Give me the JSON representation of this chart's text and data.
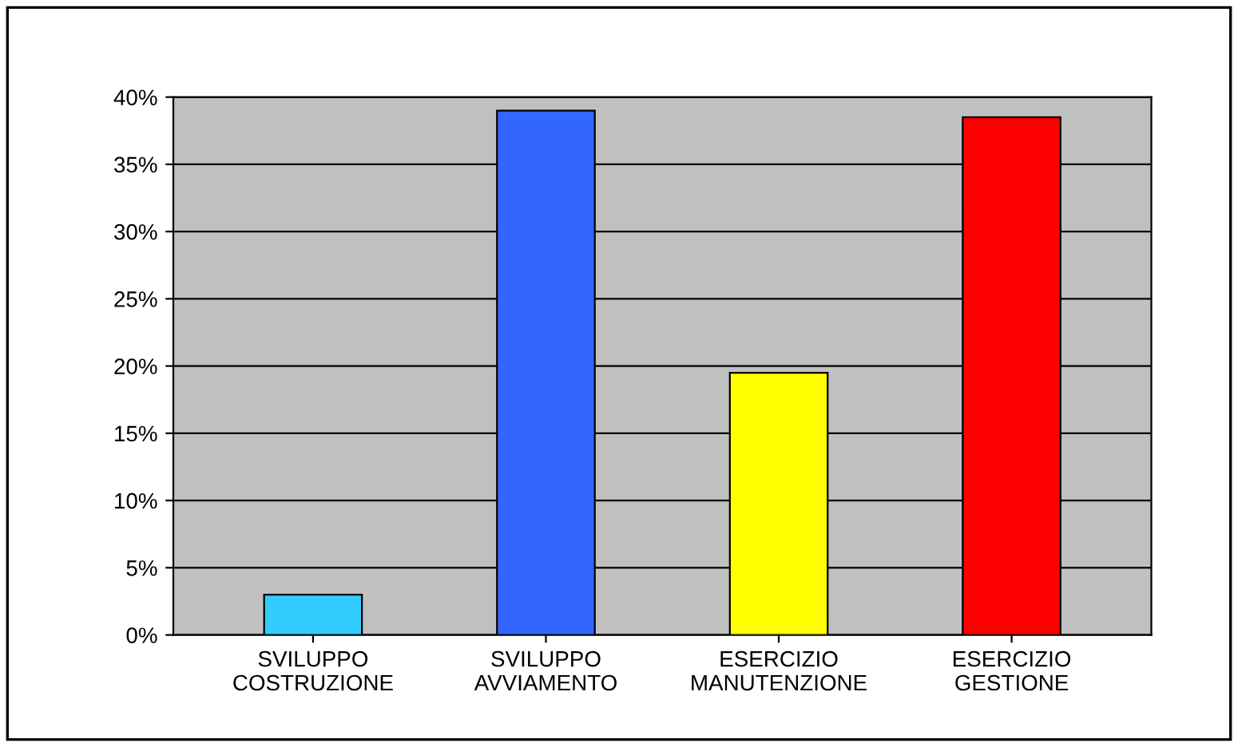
{
  "chart_data": {
    "type": "bar",
    "categories": [
      "SVILUPPO\nCOSTRUZIONE",
      "SVILUPPO\nAVVIAMENTO",
      "ESERCIZIO\nMANUTENZIONE",
      "ESERCIZIO\nGESTIONE"
    ],
    "values": [
      3,
      39,
      19.5,
      38.5
    ],
    "colors": [
      "#33ccff",
      "#3366ff",
      "#ffff00",
      "#ff0000"
    ],
    "ylim": [
      0,
      40
    ],
    "yticks": [
      {
        "value": 0,
        "label": "0%"
      },
      {
        "value": 5,
        "label": "5%"
      },
      {
        "value": 10,
        "label": "10%"
      },
      {
        "value": 15,
        "label": "15%"
      },
      {
        "value": 20,
        "label": "20%"
      },
      {
        "value": 25,
        "label": "25%"
      },
      {
        "value": 30,
        "label": "30%"
      },
      {
        "value": 35,
        "label": "35%"
      },
      {
        "value": 40,
        "label": "40%"
      }
    ],
    "grid": "y"
  }
}
